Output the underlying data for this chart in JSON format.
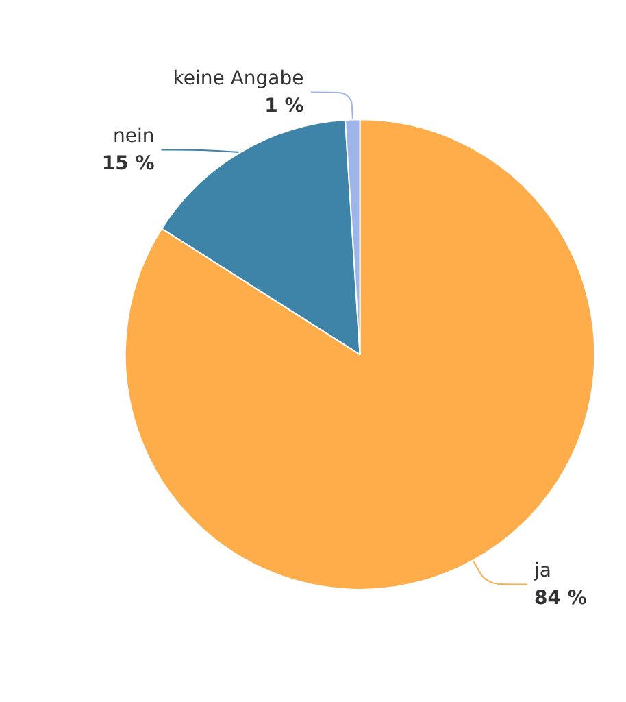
{
  "chart_data": {
    "type": "pie",
    "categories": [
      "ja",
      "nein",
      "keine Angabe"
    ],
    "values": [
      84,
      15,
      1
    ],
    "colors": [
      "#ffad4a",
      "#3d84a8",
      "#9fb4ea"
    ],
    "value_labels": [
      "84 %",
      "15 %",
      "1 %"
    ],
    "legend": false
  }
}
